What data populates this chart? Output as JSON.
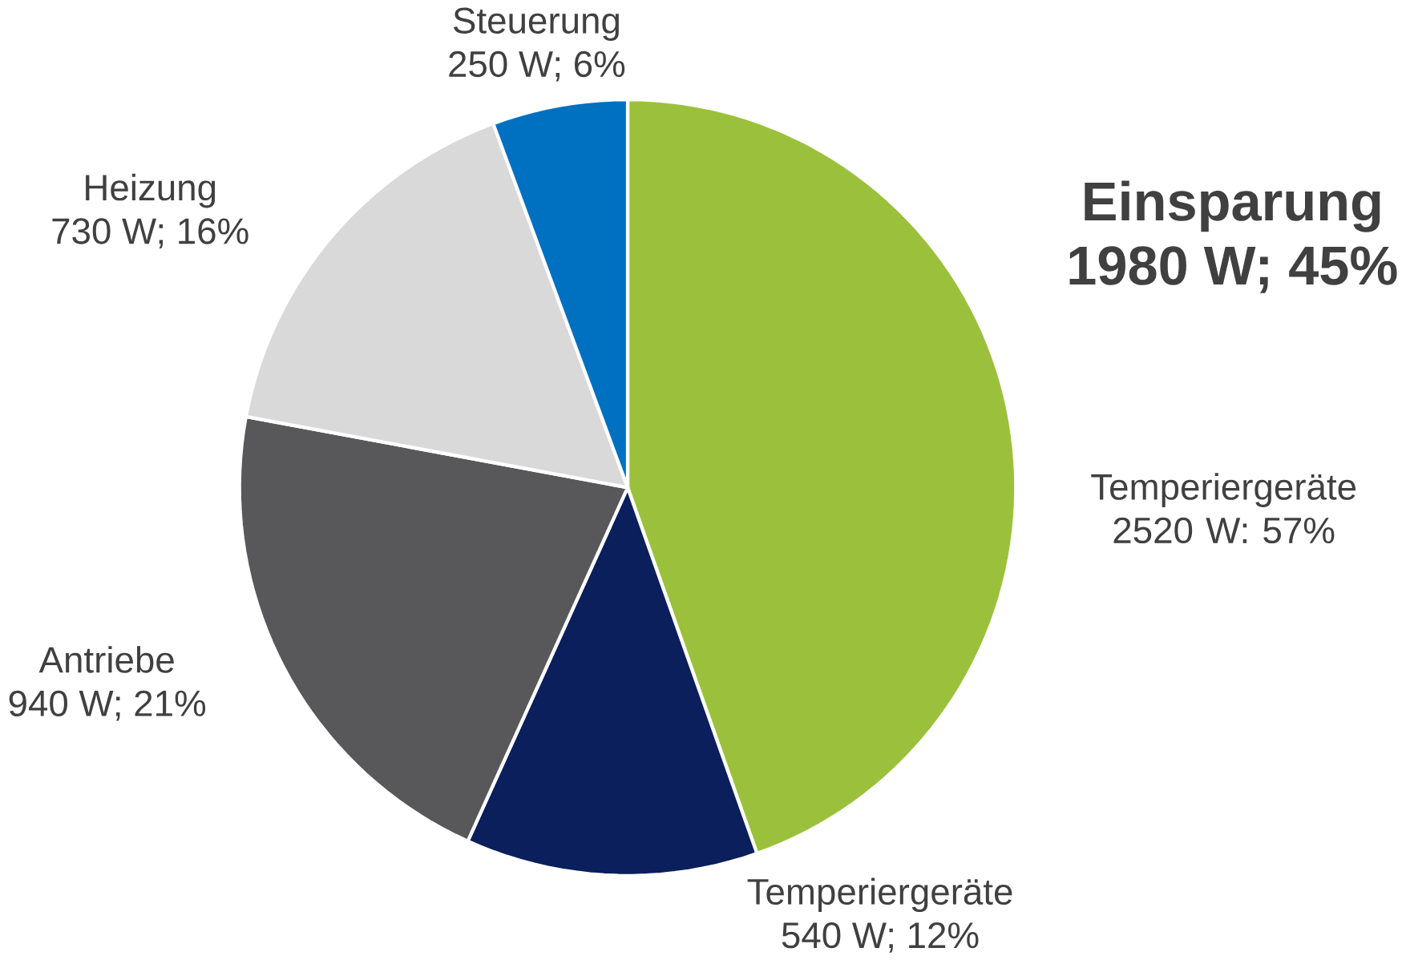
{
  "chart_data": {
    "type": "pie",
    "categories": [
      "Einsparung",
      "Temperiergeräte",
      "Antriebe",
      "Heizung",
      "Steuerung"
    ],
    "values": [
      1980,
      540,
      940,
      730,
      250
    ],
    "value_labels": [
      "1980 W; 45%",
      "540 W; 12%",
      "940 W; 21%",
      "730 W; 16%",
      "250 W; 6%"
    ],
    "colors": [
      "#9bc13c",
      "#0a1f5c",
      "#58585a",
      "#d9d9d9",
      "#0070c0"
    ],
    "annotations": [
      "Temperiergeräte 2520 W: 57%"
    ]
  }
}
